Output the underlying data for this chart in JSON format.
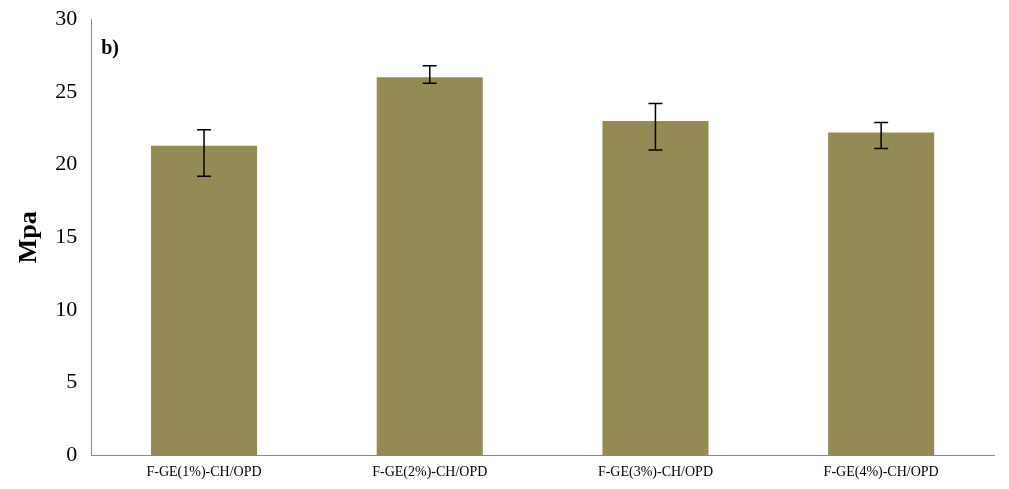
{
  "chart_data": {
    "type": "bar",
    "ylabel": "Mpa",
    "annotations": [
      "b)"
    ],
    "categories": [
      "F-GE(1%)-CH/OPD",
      "F-GE(2%)-CH/OPD",
      "F-GE(3%)-CH/OPD",
      "F-GE(4%)-CH/OPD"
    ],
    "values": [
      21.3,
      26.0,
      23.0,
      22.2
    ],
    "errors": [
      [
        19.2,
        22.4
      ],
      [
        25.6,
        26.8
      ],
      [
        21.0,
        24.2
      ],
      [
        21.1,
        22.9
      ]
    ],
    "color": "#938a54",
    "ylim": [
      0,
      30
    ],
    "yticks": [
      0,
      5,
      10,
      15,
      20,
      25,
      30
    ],
    "grid": false,
    "legend": false
  }
}
